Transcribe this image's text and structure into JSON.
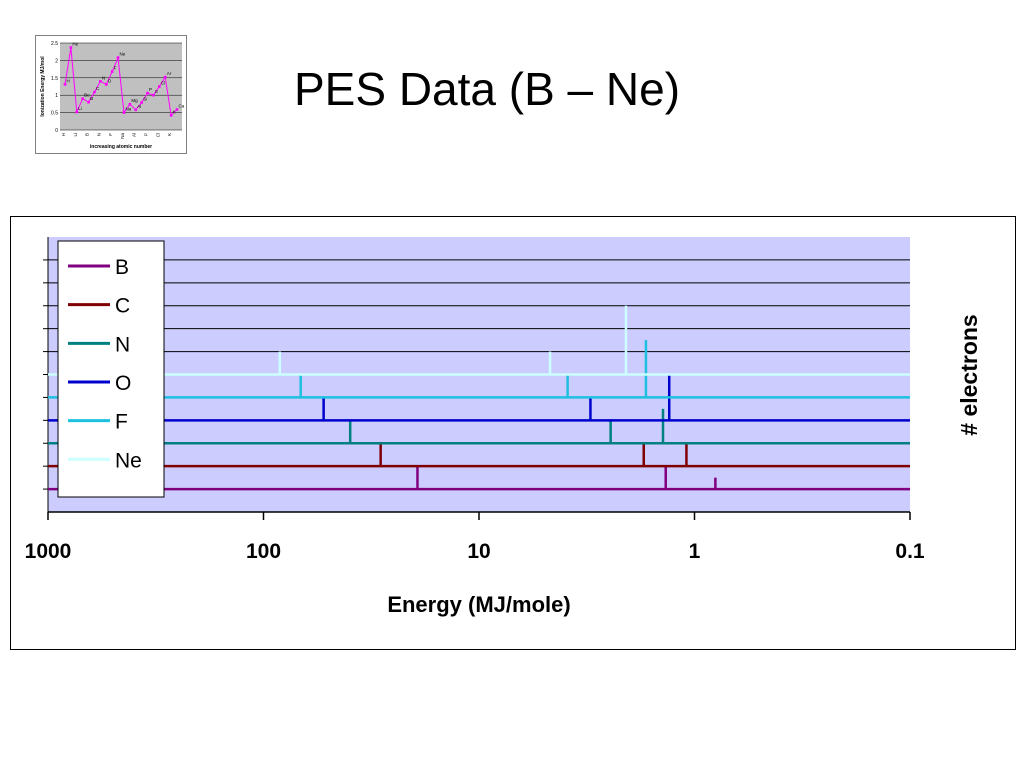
{
  "slide": {
    "title": "PES Data (B – Ne)"
  },
  "thumbnail": {
    "ylabel": "Ionization Energy MJ/mol",
    "xlabel": "increasing atomic number",
    "y_ticks": [
      "2.5",
      "2",
      "1.5",
      "1",
      "0.5",
      "0"
    ],
    "x_ticks": [
      "H",
      "Li",
      "B",
      "N",
      "F",
      "Na",
      "Al",
      "P",
      "Cl",
      "K"
    ],
    "point_labels": [
      "H",
      "He",
      "Li",
      "Be",
      "B",
      "C",
      "N",
      "O",
      "F",
      "Ne",
      "Na",
      "Mg",
      "Al",
      "Si",
      "P",
      "S",
      "Cl",
      "Ar",
      "K",
      "Ca"
    ],
    "values": [
      1.31,
      2.37,
      0.52,
      0.9,
      0.8,
      1.09,
      1.4,
      1.31,
      1.68,
      2.08,
      0.5,
      0.74,
      0.58,
      0.79,
      1.06,
      1.0,
      1.25,
      1.52,
      0.42,
      0.59
    ],
    "plot_bg": "#c0c0c0",
    "line_color": "#ff00ff"
  },
  "chart_data": {
    "type": "line",
    "title": "",
    "xlabel": "Energy (MJ/mole)",
    "ylabel": "# electrons",
    "x_scale": "log",
    "x_reversed": true,
    "xlim": [
      1000,
      0.1
    ],
    "x_ticks": [
      "1000",
      "100",
      "10",
      "1",
      "0.1"
    ],
    "x_tick_values": [
      1000,
      100,
      10,
      1,
      0.1
    ],
    "plot_bg": "#ccccff",
    "gridlines": "horizontal",
    "legend_position": "left",
    "peak_unit_height": 1,
    "series": [
      {
        "name": "B",
        "color": "#800080",
        "peaks": [
          {
            "energy": 19.3,
            "electrons": 2
          },
          {
            "energy": 1.36,
            "electrons": 2
          },
          {
            "energy": 0.8,
            "electrons": 1
          }
        ]
      },
      {
        "name": "C",
        "color": "#800000",
        "peaks": [
          {
            "energy": 28.6,
            "electrons": 2
          },
          {
            "energy": 1.72,
            "electrons": 2
          },
          {
            "energy": 1.09,
            "electrons": 2
          }
        ]
      },
      {
        "name": "N",
        "color": "#008080",
        "peaks": [
          {
            "energy": 39.6,
            "electrons": 2
          },
          {
            "energy": 2.45,
            "electrons": 2
          },
          {
            "energy": 1.4,
            "electrons": 3
          }
        ]
      },
      {
        "name": "O",
        "color": "#0000cc",
        "peaks": [
          {
            "energy": 52.6,
            "electrons": 2
          },
          {
            "energy": 3.04,
            "electrons": 2
          },
          {
            "energy": 1.31,
            "electrons": 4
          }
        ]
      },
      {
        "name": "F",
        "color": "#1ec0e0",
        "peaks": [
          {
            "energy": 67.2,
            "electrons": 2
          },
          {
            "energy": 3.88,
            "electrons": 2
          },
          {
            "energy": 1.68,
            "electrons": 5
          }
        ]
      },
      {
        "name": "Ne",
        "color": "#ccffff",
        "peaks": [
          {
            "energy": 84,
            "electrons": 2
          },
          {
            "energy": 4.68,
            "electrons": 2
          },
          {
            "energy": 2.08,
            "electrons": 6
          }
        ]
      }
    ]
  }
}
